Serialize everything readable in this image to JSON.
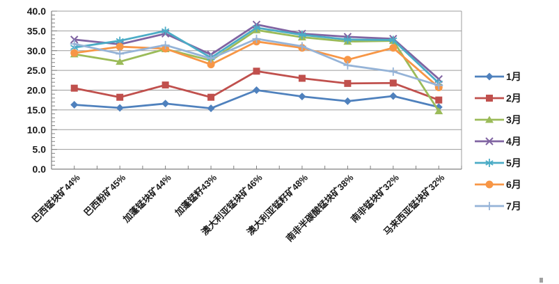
{
  "chart_data": {
    "type": "line",
    "title": "",
    "xlabel": "",
    "ylabel": "",
    "categories": [
      "巴西锰块矿44%",
      "巴西粉矿45%",
      "加蓬锰块矿44%",
      "加蓬锰籽43%",
      "澳大利亚锰块矿46%",
      "澳大利亚锰籽矿48%",
      "南非半碳酸锰块矿38%",
      "南非锰块矿32%",
      "马来西亚锰块矿32%"
    ],
    "series": [
      {
        "name": "1月",
        "color": "#4F81BD",
        "marker": "diamond",
        "values": [
          16.3,
          15.5,
          16.6,
          15.4,
          20.0,
          18.4,
          17.2,
          18.5,
          15.7
        ]
      },
      {
        "name": "2月",
        "color": "#C0504D",
        "marker": "square",
        "values": [
          20.5,
          18.2,
          21.3,
          18.2,
          24.8,
          23.0,
          21.7,
          21.8,
          17.5
        ]
      },
      {
        "name": "3月",
        "color": "#9BBB59",
        "marker": "triangle",
        "values": [
          29.1,
          27.2,
          30.4,
          27.5,
          35.2,
          33.4,
          32.3,
          32.5,
          14.7
        ]
      },
      {
        "name": "4月",
        "color": "#8064A2",
        "marker": "x",
        "values": [
          32.8,
          31.6,
          34.3,
          29.0,
          36.6,
          34.3,
          33.5,
          33.0,
          22.8
        ]
      },
      {
        "name": "5月",
        "color": "#4BACC6",
        "marker": "asterisk",
        "values": [
          30.8,
          32.5,
          35.0,
          28.2,
          35.8,
          34.0,
          32.8,
          32.7,
          21.8
        ]
      },
      {
        "name": "6月",
        "color": "#F79646",
        "marker": "circle",
        "values": [
          29.4,
          31.0,
          30.5,
          26.5,
          32.3,
          30.7,
          27.7,
          30.7,
          20.7
        ]
      },
      {
        "name": "7月",
        "color": "#95B3D7",
        "marker": "plus",
        "values": [
          31.7,
          29.2,
          31.4,
          28.0,
          33.0,
          31.1,
          26.3,
          24.7,
          21.2
        ]
      }
    ],
    "ylim": [
      0,
      40
    ],
    "ytick_step": 5,
    "ytick_labels": [
      "0.0",
      "5.0",
      "10.0",
      "15.0",
      "20.0",
      "25.0",
      "30.0",
      "35.0",
      "40.0"
    ],
    "grid": true,
    "legend_position": "right"
  },
  "style": {
    "gridline_color": "#9c9c9c",
    "axis_color": "#7f7f7f",
    "text_color": "#1a1a1a",
    "background": "#ffffff"
  }
}
